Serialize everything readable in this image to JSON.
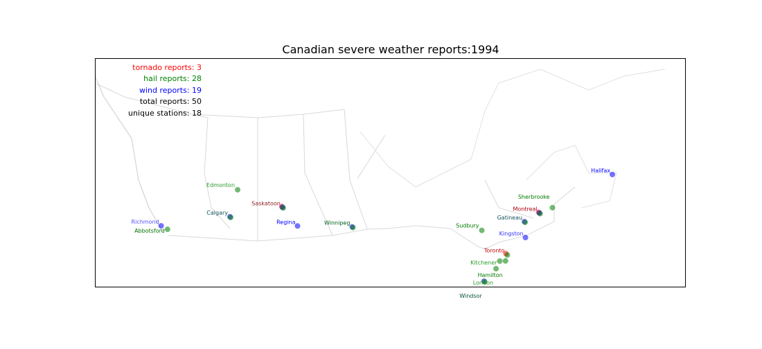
{
  "chart_data": {
    "type": "scatter",
    "title": "Canadian severe weather reports:1994",
    "legend": [
      {
        "text": "tornado reports: 3",
        "color": "#ff0000"
      },
      {
        "text": "hail reports: 28",
        "color": "#008000"
      },
      {
        "text": "wind reports: 19",
        "color": "#0000ff"
      },
      {
        "text": "total reports: 50",
        "color": "#000000"
      },
      {
        "text": "unique stations: 18",
        "color": "#000000"
      }
    ],
    "legend_placement": "top-left",
    "colors": {
      "tornado": "#ff0000",
      "hail": "#008000",
      "wind": "#0000ff"
    },
    "stations": [
      {
        "name": "Edmonton",
        "lat": 53.55,
        "lon": -113.49,
        "reports": [
          "hail"
        ],
        "label_color": "#2a9a2a"
      },
      {
        "name": "Saskatoon",
        "lat": 52.13,
        "lon": -106.67,
        "reports": [
          "tornado",
          "wind",
          "hail"
        ],
        "label_color": "#8b1a1a"
      },
      {
        "name": "Calgary",
        "lat": 51.05,
        "lon": -114.07,
        "reports": [
          "wind",
          "hail"
        ],
        "label_color": "#105060"
      },
      {
        "name": "Regina",
        "lat": 50.45,
        "lon": -104.61,
        "reports": [
          "wind"
        ],
        "label_color": "#0000ff"
      },
      {
        "name": "Winnipeg",
        "lat": 49.9,
        "lon": -97.14,
        "reports": [
          "wind",
          "hail"
        ],
        "label_color": "#006020"
      },
      {
        "name": "Richmond",
        "lat": 49.17,
        "lon": -123.14,
        "reports": [
          "wind"
        ],
        "label_color": "#5050ff"
      },
      {
        "name": "Abbotsford",
        "lat": 49.05,
        "lon": -122.31,
        "reports": [
          "hail"
        ],
        "label_color": "#007000"
      },
      {
        "name": "Sudbury",
        "lat": 46.49,
        "lon": -80.99,
        "reports": [
          "hail"
        ],
        "label_color": "#007a00"
      },
      {
        "name": "Gatineau",
        "lat": 45.48,
        "lon": -75.7,
        "reports": [
          "wind",
          "hail"
        ],
        "label_color": "#105060"
      },
      {
        "name": "Montreal",
        "lat": 45.5,
        "lon": -73.57,
        "reports": [
          "tornado",
          "wind",
          "hail"
        ],
        "label_color": "#b00010"
      },
      {
        "name": "Sherbrooke",
        "lat": 45.4,
        "lon": -71.89,
        "reports": [
          "hail"
        ],
        "label_color": "#007a00"
      },
      {
        "name": "Kingston",
        "lat": 44.23,
        "lon": -76.49,
        "reports": [
          "wind"
        ],
        "label_color": "#3030ff"
      },
      {
        "name": "Toronto",
        "lat": 43.65,
        "lon": -79.38,
        "reports": [
          "tornado",
          "hail"
        ],
        "label_color": "#c00000"
      },
      {
        "name": "Kitchener",
        "lat": 43.45,
        "lon": -80.49,
        "reports": [
          "hail"
        ],
        "label_color": "#2a9a2a"
      },
      {
        "name": "Hamilton",
        "lat": 43.26,
        "lon": -79.87,
        "reports": [
          "hail"
        ],
        "label_color": "#007a00"
      },
      {
        "name": "London",
        "lat": 42.98,
        "lon": -81.25,
        "reports": [
          "hail"
        ],
        "label_color": "#2a9a2a"
      },
      {
        "name": "Windsor",
        "lat": 42.31,
        "lon": -83.04,
        "reports": [
          "wind",
          "hail"
        ],
        "label_color": "#005030"
      },
      {
        "name": "Halifax",
        "lat": 44.65,
        "lon": -63.57,
        "reports": [
          "wind"
        ],
        "label_color": "#0000ff"
      }
    ]
  }
}
